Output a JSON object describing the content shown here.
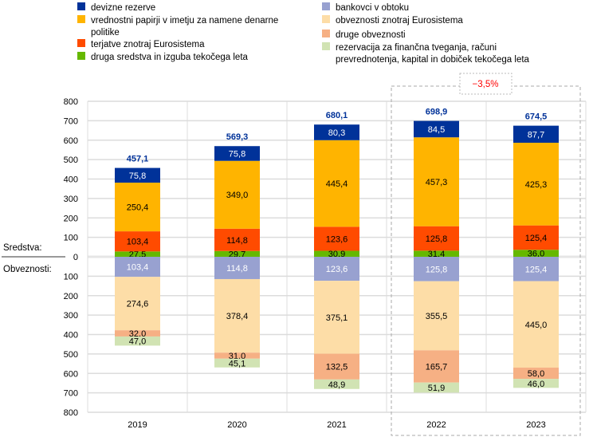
{
  "chart_data": {
    "type": "bar",
    "stacked": true,
    "categories": [
      "2019",
      "2020",
      "2021",
      "2022",
      "2023"
    ],
    "ylim": [
      -800,
      800
    ],
    "yticks": [
      "800",
      "700",
      "600",
      "500",
      "400",
      "300",
      "200",
      "100",
      "0",
      "100",
      "200",
      "300",
      "400",
      "500",
      "600",
      "700",
      "800"
    ],
    "grid": true,
    "legend_position": "top",
    "side_labels": {
      "assets": "Sredstva:",
      "liabilities": "Obveznosti:"
    },
    "totals": [
      "457,1",
      "569,3",
      "680,1",
      "698,9",
      "674,5"
    ],
    "annotation": {
      "text": "−3,5%",
      "color": "#FF0000",
      "highlight": [
        "2022",
        "2023"
      ]
    },
    "assets": [
      {
        "name": "druga sredstva in izguba tekočega leta",
        "color": "#65B800",
        "label_color": "#000000",
        "values": [
          27.5,
          29.7,
          30.9,
          31.4,
          36.0
        ],
        "labels": [
          "27,5",
          "29,7",
          "30,9",
          "31,4",
          "36,0"
        ]
      },
      {
        "name": "terjatve znotraj Eurosistema",
        "color": "#FF4B00",
        "label_color": "#000000",
        "values": [
          103.4,
          114.8,
          123.6,
          125.8,
          125.4
        ],
        "labels": [
          "103,4",
          "114,8",
          "123,6",
          "125,8",
          "125,4"
        ]
      },
      {
        "name": "vrednostni papirji v imetju za namene denarne politike",
        "color": "#FFB400",
        "label_color": "#000000",
        "values": [
          250.4,
          349.0,
          445.4,
          457.3,
          425.3
        ],
        "labels": [
          "250,4",
          "349,0",
          "445,4",
          "457,3",
          "425,3"
        ]
      },
      {
        "name": "devizne rezerve",
        "color": "#003299",
        "label_color": "#FFFFFF",
        "values": [
          75.8,
          75.8,
          80.3,
          84.5,
          87.7
        ],
        "labels": [
          "75,8",
          "75,8",
          "80,3",
          "84,5",
          "87,7"
        ]
      }
    ],
    "liabilities": [
      {
        "name": "bankovci v obtoku",
        "color": "#98A1D0",
        "label_color": "#FFFFFF",
        "values": [
          103.4,
          114.8,
          123.6,
          125.8,
          125.4
        ],
        "labels": [
          "103,4",
          "114,8",
          "123,6",
          "125,8",
          "125,4"
        ]
      },
      {
        "name": "obveznosti znotraj Eurosistema",
        "color": "#FDDDA7",
        "label_color": "#000000",
        "values": [
          274.6,
          378.4,
          375.1,
          355.5,
          445.0
        ],
        "labels": [
          "274,6",
          "378,4",
          "375,1",
          "355,5",
          "445,0"
        ]
      },
      {
        "name": "druge obveznosti",
        "color": "#F6B084",
        "label_color": "#000000",
        "values": [
          32.0,
          31.0,
          132.5,
          165.7,
          58.0
        ],
        "labels": [
          "32,0",
          "31,0",
          "132,5",
          "165,7",
          "58,0"
        ]
      },
      {
        "name": "rezervacija za finančna tveganja, računi prevrednotenja, kapital in dobiček tekočega leta",
        "color": "#D1E3B3",
        "label_color": "#000000",
        "values": [
          47.0,
          45.1,
          48.9,
          51.9,
          46.0
        ],
        "labels": [
          "47,0",
          "45,1",
          "48,9",
          "51,9",
          "46,0"
        ]
      }
    ],
    "legend": [
      {
        "label": "devizne rezerve",
        "color": "#003299"
      },
      {
        "label": "vrednostni papirji v imetju za namene denarne politike",
        "color": "#FFB400"
      },
      {
        "label": "terjatve znotraj Eurosistema",
        "color": "#FF4B00"
      },
      {
        "label": "druga sredstva in izguba tekočega leta",
        "color": "#65B800"
      },
      {
        "label": "bankovci v obtoku",
        "color": "#98A1D0"
      },
      {
        "label": "obveznosti znotraj Eurosistema",
        "color": "#FDDDA7"
      },
      {
        "label": "druge obveznosti",
        "color": "#F6B084"
      },
      {
        "label": "rezervacija za finančna tveganja, računi prevrednotenja, kapital in dobiček tekočega leta",
        "color": "#D1E3B3"
      }
    ]
  }
}
